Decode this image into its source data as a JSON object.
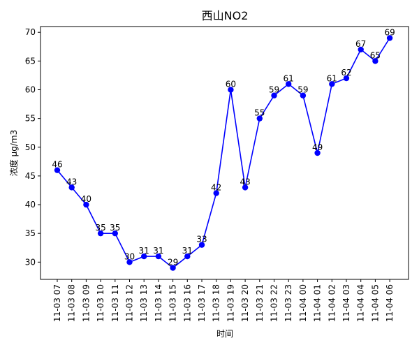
{
  "chart_data": {
    "type": "line",
    "title": "西山NO2",
    "xlabel": "时间",
    "ylabel": "浓度 μg/m3",
    "ylim": [
      27,
      71
    ],
    "yticks": [
      30,
      35,
      40,
      45,
      50,
      55,
      60,
      65,
      70
    ],
    "grid": false,
    "legend": "none",
    "line_color": "#0000ff",
    "categories": [
      "11-03 07",
      "11-03 08",
      "11-03 09",
      "11-03 10",
      "11-03 11",
      "11-03 12",
      "11-03 13",
      "11-03 14",
      "11-03 15",
      "11-03 16",
      "11-03 17",
      "11-03 18",
      "11-03 19",
      "11-03 20",
      "11-03 21",
      "11-03 22",
      "11-03 23",
      "11-04 00",
      "11-04 01",
      "11-04 02",
      "11-04 03",
      "11-04 04",
      "11-04 05",
      "11-04 06"
    ],
    "values": [
      46,
      43,
      40,
      35,
      35,
      30,
      31,
      31,
      29,
      31,
      33,
      42,
      60,
      43,
      55,
      59,
      61,
      59,
      49,
      61,
      62,
      67,
      65,
      69
    ]
  }
}
